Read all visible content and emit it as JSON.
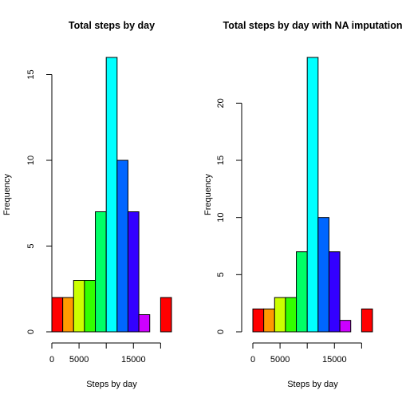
{
  "chart_data": [
    {
      "type": "bar",
      "title": "Total steps by day",
      "xlabel": "Steps by day",
      "ylabel": "Frequency",
      "bin_edges": [
        0,
        2000,
        4000,
        6000,
        8000,
        10000,
        12000,
        14000,
        16000,
        18000,
        20000,
        22000
      ],
      "values": [
        2,
        2,
        3,
        3,
        7,
        16,
        10,
        7,
        1,
        0,
        2
      ],
      "colors": [
        "#FF0000",
        "#FF9900",
        "#CCFF00",
        "#33FF00",
        "#00FF66",
        "#00FFFF",
        "#0066FF",
        "#3300FF",
        "#CC00FF",
        "#FF0099",
        "#FF0000"
      ],
      "xlim": [
        0,
        22000
      ],
      "ylim": [
        0,
        16
      ],
      "xticks": [
        0,
        5000,
        10000,
        15000,
        20000
      ],
      "xtick_labels": [
        "0",
        "5000",
        "",
        "15000",
        ""
      ],
      "yticks": [
        0,
        5,
        10,
        15
      ],
      "ytick_labels": [
        "0",
        "5",
        "10",
        "15"
      ],
      "grid": false
    },
    {
      "type": "bar",
      "title": "Total steps by day with NA imputation",
      "xlabel": "Steps by day",
      "ylabel": "Frequency",
      "bin_edges": [
        0,
        2000,
        4000,
        6000,
        8000,
        10000,
        12000,
        14000,
        16000,
        18000,
        20000,
        22000
      ],
      "values": [
        2,
        2,
        3,
        3,
        7,
        24,
        10,
        7,
        1,
        0,
        2
      ],
      "colors": [
        "#FF0000",
        "#FF9900",
        "#CCFF00",
        "#33FF00",
        "#00FF66",
        "#00FFFF",
        "#0066FF",
        "#3300FF",
        "#CC00FF",
        "#FF0099",
        "#FF0000"
      ],
      "xlim": [
        0,
        22000
      ],
      "ylim": [
        0,
        24
      ],
      "xticks": [
        0,
        5000,
        10000,
        15000,
        20000
      ],
      "xtick_labels": [
        "0",
        "5000",
        "",
        "15000",
        ""
      ],
      "yticks": [
        0,
        5,
        10,
        15,
        20
      ],
      "ytick_labels": [
        "0",
        "5",
        "10",
        "15",
        "20"
      ],
      "grid": false
    }
  ]
}
